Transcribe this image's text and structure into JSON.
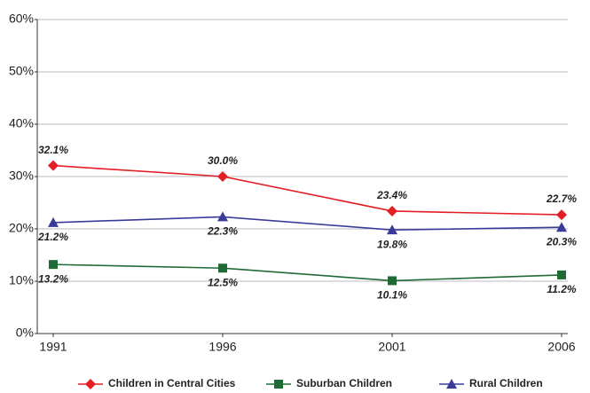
{
  "chart_data": {
    "type": "line",
    "categories": [
      "1991",
      "1996",
      "2001",
      "2006"
    ],
    "series": [
      {
        "name": "Children in Central Cities",
        "color": "#e31f26",
        "marker": "diamond",
        "values": [
          32.1,
          30.0,
          23.4,
          22.7
        ],
        "value_labels": [
          "32.1%",
          "30.0%",
          "23.4%",
          "22.7%"
        ]
      },
      {
        "name": "Suburban Children",
        "color": "#1e6b35",
        "marker": "square",
        "values": [
          13.2,
          12.5,
          10.1,
          11.2
        ],
        "value_labels": [
          "13.2%",
          "12.5%",
          "10.1%",
          "11.2%"
        ]
      },
      {
        "name": "Rural Children",
        "color": "#3a3b98",
        "marker": "triangle",
        "values": [
          21.2,
          22.3,
          19.8,
          20.3
        ],
        "value_labels": [
          "21.2%",
          "22.3%",
          "19.8%",
          "20.3%"
        ]
      }
    ],
    "ylim": [
      0,
      60
    ],
    "yticks": [
      {
        "value": 0,
        "label": "0%"
      },
      {
        "value": 10,
        "label": "10%"
      },
      {
        "value": 20,
        "label": "20%"
      },
      {
        "value": 30,
        "label": "30%"
      },
      {
        "value": 40,
        "label": "40%"
      },
      {
        "value": 50,
        "label": "50%"
      },
      {
        "value": 60,
        "label": "60%"
      }
    ],
    "grid": true,
    "legend": "bottom"
  }
}
